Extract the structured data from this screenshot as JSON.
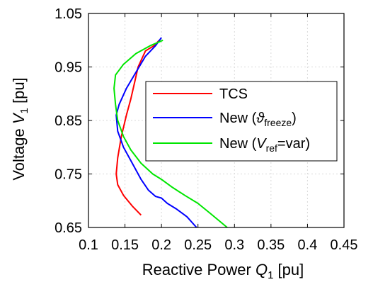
{
  "chart_data": {
    "type": "line",
    "xlabel": "Reactive Power Q1 [pu]",
    "ylabel": "Voltage V1 [pu]",
    "xlim": [
      0.1,
      0.45
    ],
    "ylim": [
      0.65,
      1.05
    ],
    "xticks": [
      0.1,
      0.15,
      0.2,
      0.25,
      0.3,
      0.35,
      0.4,
      0.45
    ],
    "xtick_labels": [
      "0.1",
      "0.15",
      "0.2",
      "0.25",
      "0.3",
      "0.35",
      "0.4",
      "0.45"
    ],
    "yticks": [
      0.65,
      0.75,
      0.85,
      0.95,
      1.05
    ],
    "ytick_labels": [
      "0.65",
      "0.75",
      "0.85",
      "0.95",
      "1.05"
    ],
    "grid": true,
    "legend_position": "center-right",
    "series": [
      {
        "name": "TCS",
        "color": "#ff0000",
        "points": [
          [
            0.197,
            1.0
          ],
          [
            0.19,
            0.99
          ],
          [
            0.178,
            0.98
          ],
          [
            0.168,
            0.95
          ],
          [
            0.163,
            0.92
          ],
          [
            0.158,
            0.89
          ],
          [
            0.152,
            0.86
          ],
          [
            0.145,
            0.82
          ],
          [
            0.14,
            0.78
          ],
          [
            0.138,
            0.75
          ],
          [
            0.14,
            0.73
          ],
          [
            0.148,
            0.71
          ],
          [
            0.16,
            0.69
          ],
          [
            0.172,
            0.673
          ]
        ]
      },
      {
        "name": "New (ϑfreeze)",
        "color": "#0000ff",
        "points": [
          [
            0.2,
            1.005
          ],
          [
            0.192,
            0.99
          ],
          [
            0.178,
            0.97
          ],
          [
            0.165,
            0.94
          ],
          [
            0.152,
            0.91
          ],
          [
            0.142,
            0.88
          ],
          [
            0.138,
            0.86
          ],
          [
            0.14,
            0.83
          ],
          [
            0.148,
            0.8
          ],
          [
            0.16,
            0.77
          ],
          [
            0.172,
            0.74
          ],
          [
            0.182,
            0.72
          ],
          [
            0.192,
            0.708
          ],
          [
            0.2,
            0.705
          ],
          [
            0.208,
            0.695
          ],
          [
            0.22,
            0.685
          ],
          [
            0.235,
            0.67
          ],
          [
            0.248,
            0.65
          ]
        ]
      },
      {
        "name": "New (Vref=var)",
        "color": "#00e600",
        "points": [
          [
            0.202,
            1.0
          ],
          [
            0.185,
            0.99
          ],
          [
            0.165,
            0.975
          ],
          [
            0.148,
            0.955
          ],
          [
            0.137,
            0.935
          ],
          [
            0.135,
            0.91
          ],
          [
            0.137,
            0.88
          ],
          [
            0.14,
            0.85
          ],
          [
            0.148,
            0.82
          ],
          [
            0.158,
            0.795
          ],
          [
            0.172,
            0.77
          ],
          [
            0.188,
            0.75
          ],
          [
            0.2,
            0.74
          ],
          [
            0.215,
            0.725
          ],
          [
            0.232,
            0.71
          ],
          [
            0.25,
            0.695
          ],
          [
            0.268,
            0.675
          ],
          [
            0.29,
            0.65
          ]
        ]
      }
    ]
  }
}
